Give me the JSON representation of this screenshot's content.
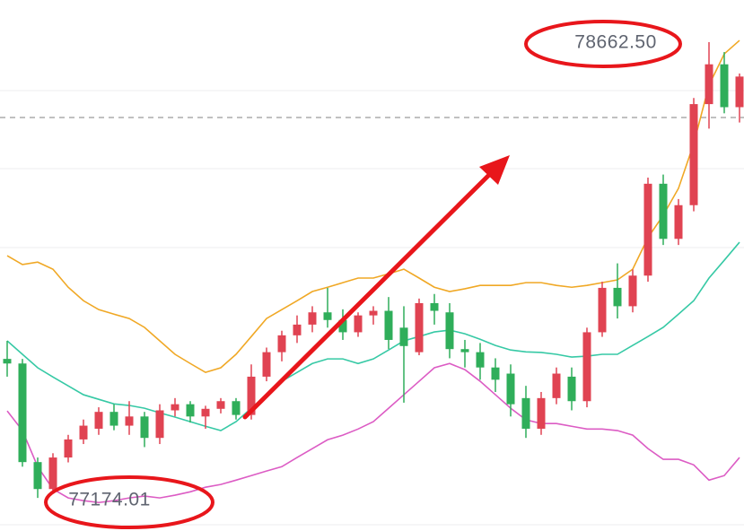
{
  "chart_data": {
    "type": "candlestick",
    "ylim": [
      77066,
      78800
    ],
    "up_color": "#e04352",
    "down_color": "#2fae5a",
    "open": [
      77628,
      77613,
      77291,
      77203,
      77306,
      77365,
      77400,
      77455,
      77410,
      77440,
      77370,
      77460,
      77480,
      77440,
      77465,
      77490,
      77445,
      77570,
      77650,
      77705,
      77740,
      77780,
      77755,
      77715,
      77770,
      77785,
      77730,
      77650,
      77810,
      77780,
      77660,
      77650,
      77600,
      77580,
      77500,
      77400,
      77500,
      77570,
      77490,
      77715,
      77860,
      77800,
      77900,
      78200,
      78020,
      78130,
      78460,
      78590,
      78450
    ],
    "high": [
      77687,
      77628,
      77306,
      77320,
      77380,
      77430,
      77470,
      77480,
      77490,
      77455,
      77480,
      77500,
      77490,
      77475,
      77500,
      77500,
      77610,
      77665,
      77720,
      77770,
      77800,
      77860,
      77790,
      77780,
      77800,
      77830,
      77800,
      77825,
      77840,
      77810,
      77690,
      77680,
      77630,
      77610,
      77540,
      77520,
      77600,
      77600,
      77730,
      77880,
      77940,
      77920,
      78220,
      78230,
      78150,
      78480,
      78662.5,
      78630,
      78560
    ],
    "low": [
      77570,
      77276,
      77174.01,
      77189,
      77290,
      77350,
      77380,
      77395,
      77380,
      77340,
      77350,
      77440,
      77420,
      77400,
      77450,
      77430,
      77430,
      77555,
      77620,
      77680,
      77715,
      77730,
      77690,
      77700,
      77740,
      77660,
      77485,
      77640,
      77740,
      77630,
      77600,
      77560,
      77520,
      77440,
      77370,
      77380,
      77480,
      77460,
      77470,
      77700,
      77760,
      77780,
      77880,
      78000,
      78000,
      78110,
      78380,
      78430,
      78400
    ],
    "close": [
      77613,
      77291,
      77203,
      77306,
      77365,
      77410,
      77455,
      77410,
      77440,
      77370,
      77460,
      77480,
      77440,
      77465,
      77490,
      77445,
      77570,
      77650,
      77705,
      77740,
      77780,
      77755,
      77715,
      77770,
      77785,
      77690,
      77670,
      77810,
      77785,
      77660,
      77650,
      77600,
      77560,
      77480,
      77400,
      77500,
      77580,
      77490,
      77715,
      77860,
      77800,
      77900,
      78200,
      78020,
      78130,
      78460,
      78590,
      78450,
      78550
    ],
    "lines": [
      {
        "color": "#f0a825",
        "values": [
          77965,
          77936,
          77944,
          77921,
          77862,
          77818,
          77789,
          77774,
          77760,
          77731,
          77687,
          77643,
          77613,
          77584,
          77599,
          77643,
          77701,
          77760,
          77789,
          77818,
          77848,
          77862,
          77877,
          77892,
          77892,
          77906,
          77921,
          77892,
          77862,
          77848,
          77857,
          77868,
          77868,
          77868,
          77877,
          77877,
          77868,
          77862,
          77868,
          77877,
          77886,
          77921,
          78024,
          78097,
          78185,
          78331,
          78522,
          78624,
          78668
        ]
      },
      {
        "color": "#36c9a5",
        "values": [
          77687,
          77643,
          77599,
          77569,
          77540,
          77511,
          77496,
          77481,
          77476,
          77467,
          77452,
          77438,
          77423,
          77408,
          77394,
          77423,
          77467,
          77511,
          77555,
          77584,
          77613,
          77628,
          77628,
          77613,
          77628,
          77657,
          77687,
          77701,
          77716,
          77722,
          77710,
          77692,
          77672,
          77657,
          77651,
          77649,
          77643,
          77634,
          77637,
          77643,
          77643,
          77672,
          77701,
          77731,
          77774,
          77818,
          77892,
          77950,
          78009
        ]
      },
      {
        "color": "#dc5cc4",
        "values": [
          77458,
          77394,
          77276,
          77203,
          77174,
          77165,
          77159,
          77165,
          77174,
          77180,
          77174,
          77183,
          77194,
          77209,
          77218,
          77232,
          77247,
          77262,
          77276,
          77306,
          77335,
          77364,
          77379,
          77399,
          77423,
          77467,
          77511,
          77555,
          77599,
          77613,
          77593,
          77555,
          77511,
          77467,
          77429,
          77417,
          77417,
          77408,
          77399,
          77399,
          77394,
          77379,
          77335,
          77300,
          77300,
          77282,
          77232,
          77247,
          77306
        ]
      }
    ],
    "annotations": [
      {
        "text": "78662.50"
      },
      {
        "text": "77174.01"
      }
    ]
  }
}
